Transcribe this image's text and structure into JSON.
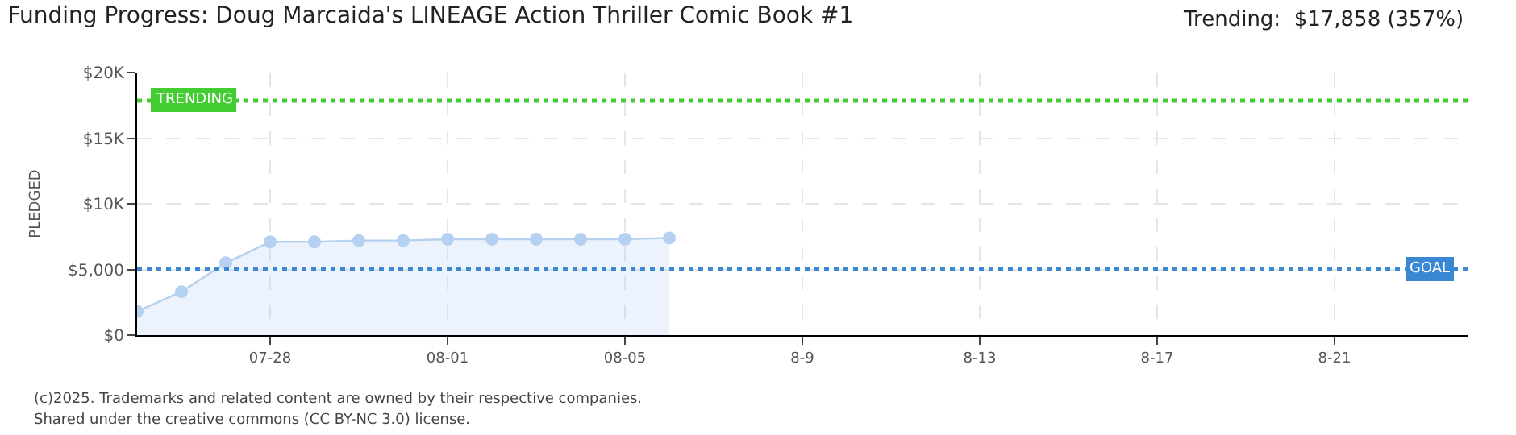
{
  "chart_data": {
    "type": "area",
    "title": "Funding Progress: Doug Marcaida's LINEAGE Action Thriller Comic Book #1",
    "ylabel": "PLEDGED",
    "annotations": [
      "Trending:  $17,858 (357%)",
      "(c)2025. Trademarks and related content are owned by their respective companies.",
      "Shared under the creative commons (CC BY-NC 3.0) license."
    ],
    "x": [
      "--07-25",
      "--07-26",
      "--07-27",
      "--07-28",
      "--07-29",
      "--07-30",
      "--07-31",
      "--08-01",
      "--08-02",
      "--08-03",
      "--08-04",
      "--08-05",
      "--08-06"
    ],
    "series": [
      {
        "color": "#b5d1f2",
        "values": [
          1800,
          3300,
          5500,
          7100,
          7100,
          7200,
          7200,
          7300,
          7300,
          7300,
          7300,
          7300,
          7400
        ]
      }
    ],
    "xlim": [
      "--07-25",
      "--08-24"
    ],
    "xticks": [
      {
        "value": "--07-28",
        "label": "07-28"
      },
      {
        "value": "--08-01",
        "label": "08-01"
      },
      {
        "value": "--08-05",
        "label": "08-05"
      },
      {
        "value": "--08-09",
        "label": "8-9"
      },
      {
        "value": "--08-13",
        "label": "8-13"
      },
      {
        "value": "--08-17",
        "label": "8-17"
      },
      {
        "value": "--08-21",
        "label": "8-21"
      }
    ],
    "ylim": [
      0,
      20000
    ],
    "yticks": [
      {
        "value": 0,
        "label": "$0"
      },
      {
        "value": 5000,
        "label": "$5,000"
      },
      {
        "value": 10000,
        "label": "$10K"
      },
      {
        "value": 15000,
        "label": "$15K"
      },
      {
        "value": 20000,
        "label": "$20K"
      }
    ],
    "ref_lines": [
      {
        "axis": "y",
        "value": 17858,
        "label": "TRENDING",
        "color": "#44cc33",
        "line_style": "dotted"
      },
      {
        "axis": "y",
        "value": 5000,
        "label": "GOAL",
        "color": "#3a87d4",
        "line_style": "dotted"
      }
    ],
    "grid": true,
    "marker": "circle",
    "legend": false
  }
}
